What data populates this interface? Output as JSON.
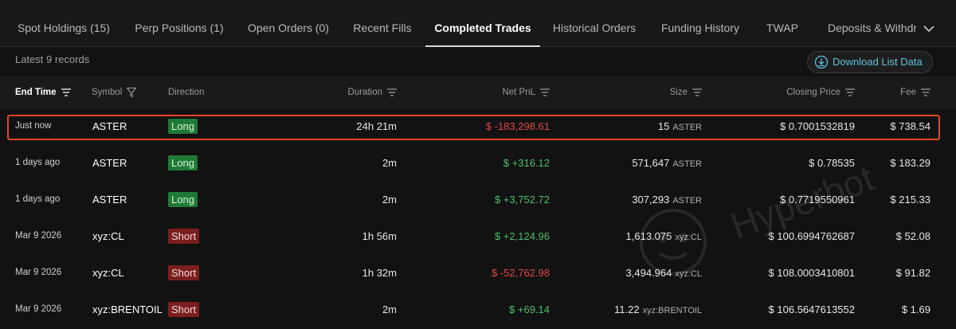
{
  "tabs": [
    {
      "label": "Spot Holdings (15)",
      "active": false
    },
    {
      "label": "Perp Positions (1)",
      "active": false
    },
    {
      "label": "Open Orders (0)",
      "active": false
    },
    {
      "label": "Recent Fills",
      "active": false
    },
    {
      "label": "Completed Trades",
      "active": true
    },
    {
      "label": "Historical Orders",
      "active": false
    },
    {
      "label": "Funding History",
      "active": false
    },
    {
      "label": "TWAP",
      "active": false
    },
    {
      "label": "Deposits & Withdra",
      "active": false
    }
  ],
  "more_icon": "chevron-down-icon",
  "records_label": "Latest 9 records",
  "download_button": {
    "label": "Download List Data",
    "icon": "download-icon"
  },
  "columns": {
    "end_time": "End Time",
    "symbol": "Symbol",
    "direction": "Direction",
    "duration": "Duration",
    "net_pnl": "Net PnL",
    "size": "Size",
    "closing_price": "Closing Price",
    "fee": "Fee"
  },
  "rows": [
    {
      "end_time": "Just now",
      "symbol": "ASTER",
      "direction": "Long",
      "duration": "24h 21m",
      "net_pnl": "$ -183,298.61",
      "size": "15",
      "size_unit": "ASTER",
      "closing_price": "$ 0.7001532819",
      "fee": "$ 738.54"
    },
    {
      "end_time": "1 days ago",
      "symbol": "ASTER",
      "direction": "Long",
      "duration": "2m",
      "net_pnl": "$ +316.12",
      "size": "571,647",
      "size_unit": "ASTER",
      "closing_price": "$ 0.78535",
      "fee": "$ 183.29"
    },
    {
      "end_time": "1 days ago",
      "symbol": "ASTER",
      "direction": "Long",
      "duration": "2m",
      "net_pnl": "$ +3,752.72",
      "size": "307,293",
      "size_unit": "ASTER",
      "closing_price": "$ 0.7719550961",
      "fee": "$ 215.33"
    },
    {
      "end_time": "Mar 9 2026",
      "symbol": "xyz:CL",
      "direction": "Short",
      "duration": "1h 56m",
      "net_pnl": "$ +2,124.96",
      "size": "1,613.075",
      "size_unit": "xyz:CL",
      "closing_price": "$ 100.6994762687",
      "fee": "$ 52.08"
    },
    {
      "end_time": "Mar 9 2026",
      "symbol": "xyz:CL",
      "direction": "Short",
      "duration": "1h 32m",
      "net_pnl": "$ -52,762.98",
      "size": "3,494.964",
      "size_unit": "xyz:CL",
      "closing_price": "$ 108.0003410801",
      "fee": "$ 91.82"
    },
    {
      "end_time": "Mar 9 2026",
      "symbol": "xyz:BRENTOIL",
      "direction": "Short",
      "duration": "2m",
      "net_pnl": "$ +69.14",
      "size": "11.22",
      "size_unit": "xyz:BRENTOIL",
      "closing_price": "$ 106.5647613552",
      "fee": "$ 1.69"
    }
  ],
  "colors": {
    "long": "#1f7a35",
    "short": "#7a1f1f",
    "profit": "#4ec06a",
    "loss": "#e04848",
    "highlight": "#e4452a",
    "accent": "#5ec3da"
  },
  "watermark": {
    "text": "Hyperbot",
    "icon": "hyperbot-logo-icon"
  }
}
